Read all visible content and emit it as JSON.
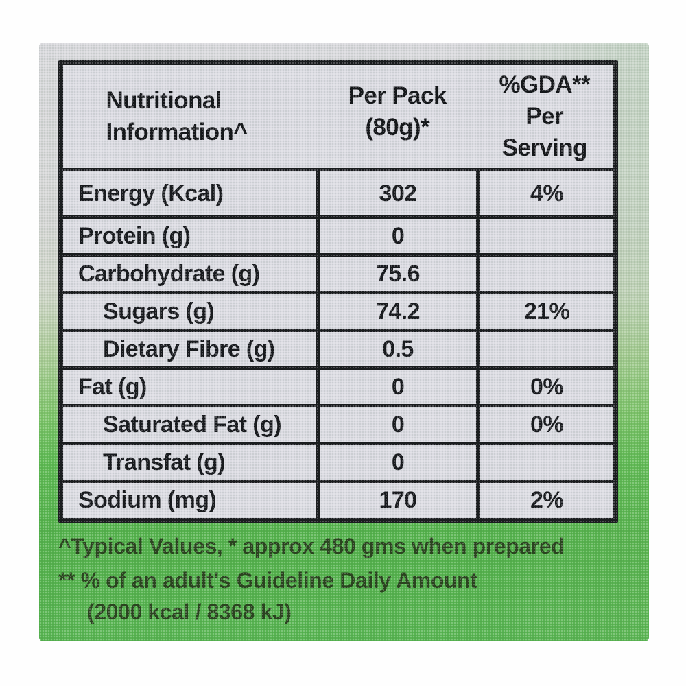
{
  "colors": {
    "package_green": "#54b24c",
    "package_grey": "#d7d7db",
    "cell_background": "#dbdbe2",
    "table_border": "#1a1b1f",
    "footnote_text": "#2a431f"
  },
  "table": {
    "header": {
      "nutrition": [
        "Nutritional",
        "Information^"
      ],
      "per_pack": [
        "Per Pack",
        "(80g)*"
      ],
      "gda": [
        "%GDA**",
        "Per",
        "Serving"
      ]
    },
    "rows": [
      {
        "label": "Energy (Kcal)",
        "per_pack": "302",
        "gda": "4%",
        "indent": false
      },
      {
        "label": "Protein (g)",
        "per_pack": "0",
        "gda": "",
        "indent": false
      },
      {
        "label": "Carbohydrate (g)",
        "per_pack": "75.6",
        "gda": "",
        "indent": false
      },
      {
        "label": "Sugars (g)",
        "per_pack": "74.2",
        "gda": "21%",
        "indent": true
      },
      {
        "label": "Dietary Fibre (g)",
        "per_pack": "0.5",
        "gda": "",
        "indent": true
      },
      {
        "label": "Fat (g)",
        "per_pack": "0",
        "gda": "0%",
        "indent": false
      },
      {
        "label": "Saturated Fat (g)",
        "per_pack": "0",
        "gda": "0%",
        "indent": true
      },
      {
        "label": "Transfat (g)",
        "per_pack": "0",
        "gda": "",
        "indent": true
      },
      {
        "label": "Sodium (mg)",
        "per_pack": "170",
        "gda": "2%",
        "indent": false
      }
    ]
  },
  "footnotes": [
    "^Typical Values,  * approx 480 gms when prepared",
    "** % of an adult's Guideline Daily Amount",
    "(2000 kcal / 8368 kJ)"
  ]
}
